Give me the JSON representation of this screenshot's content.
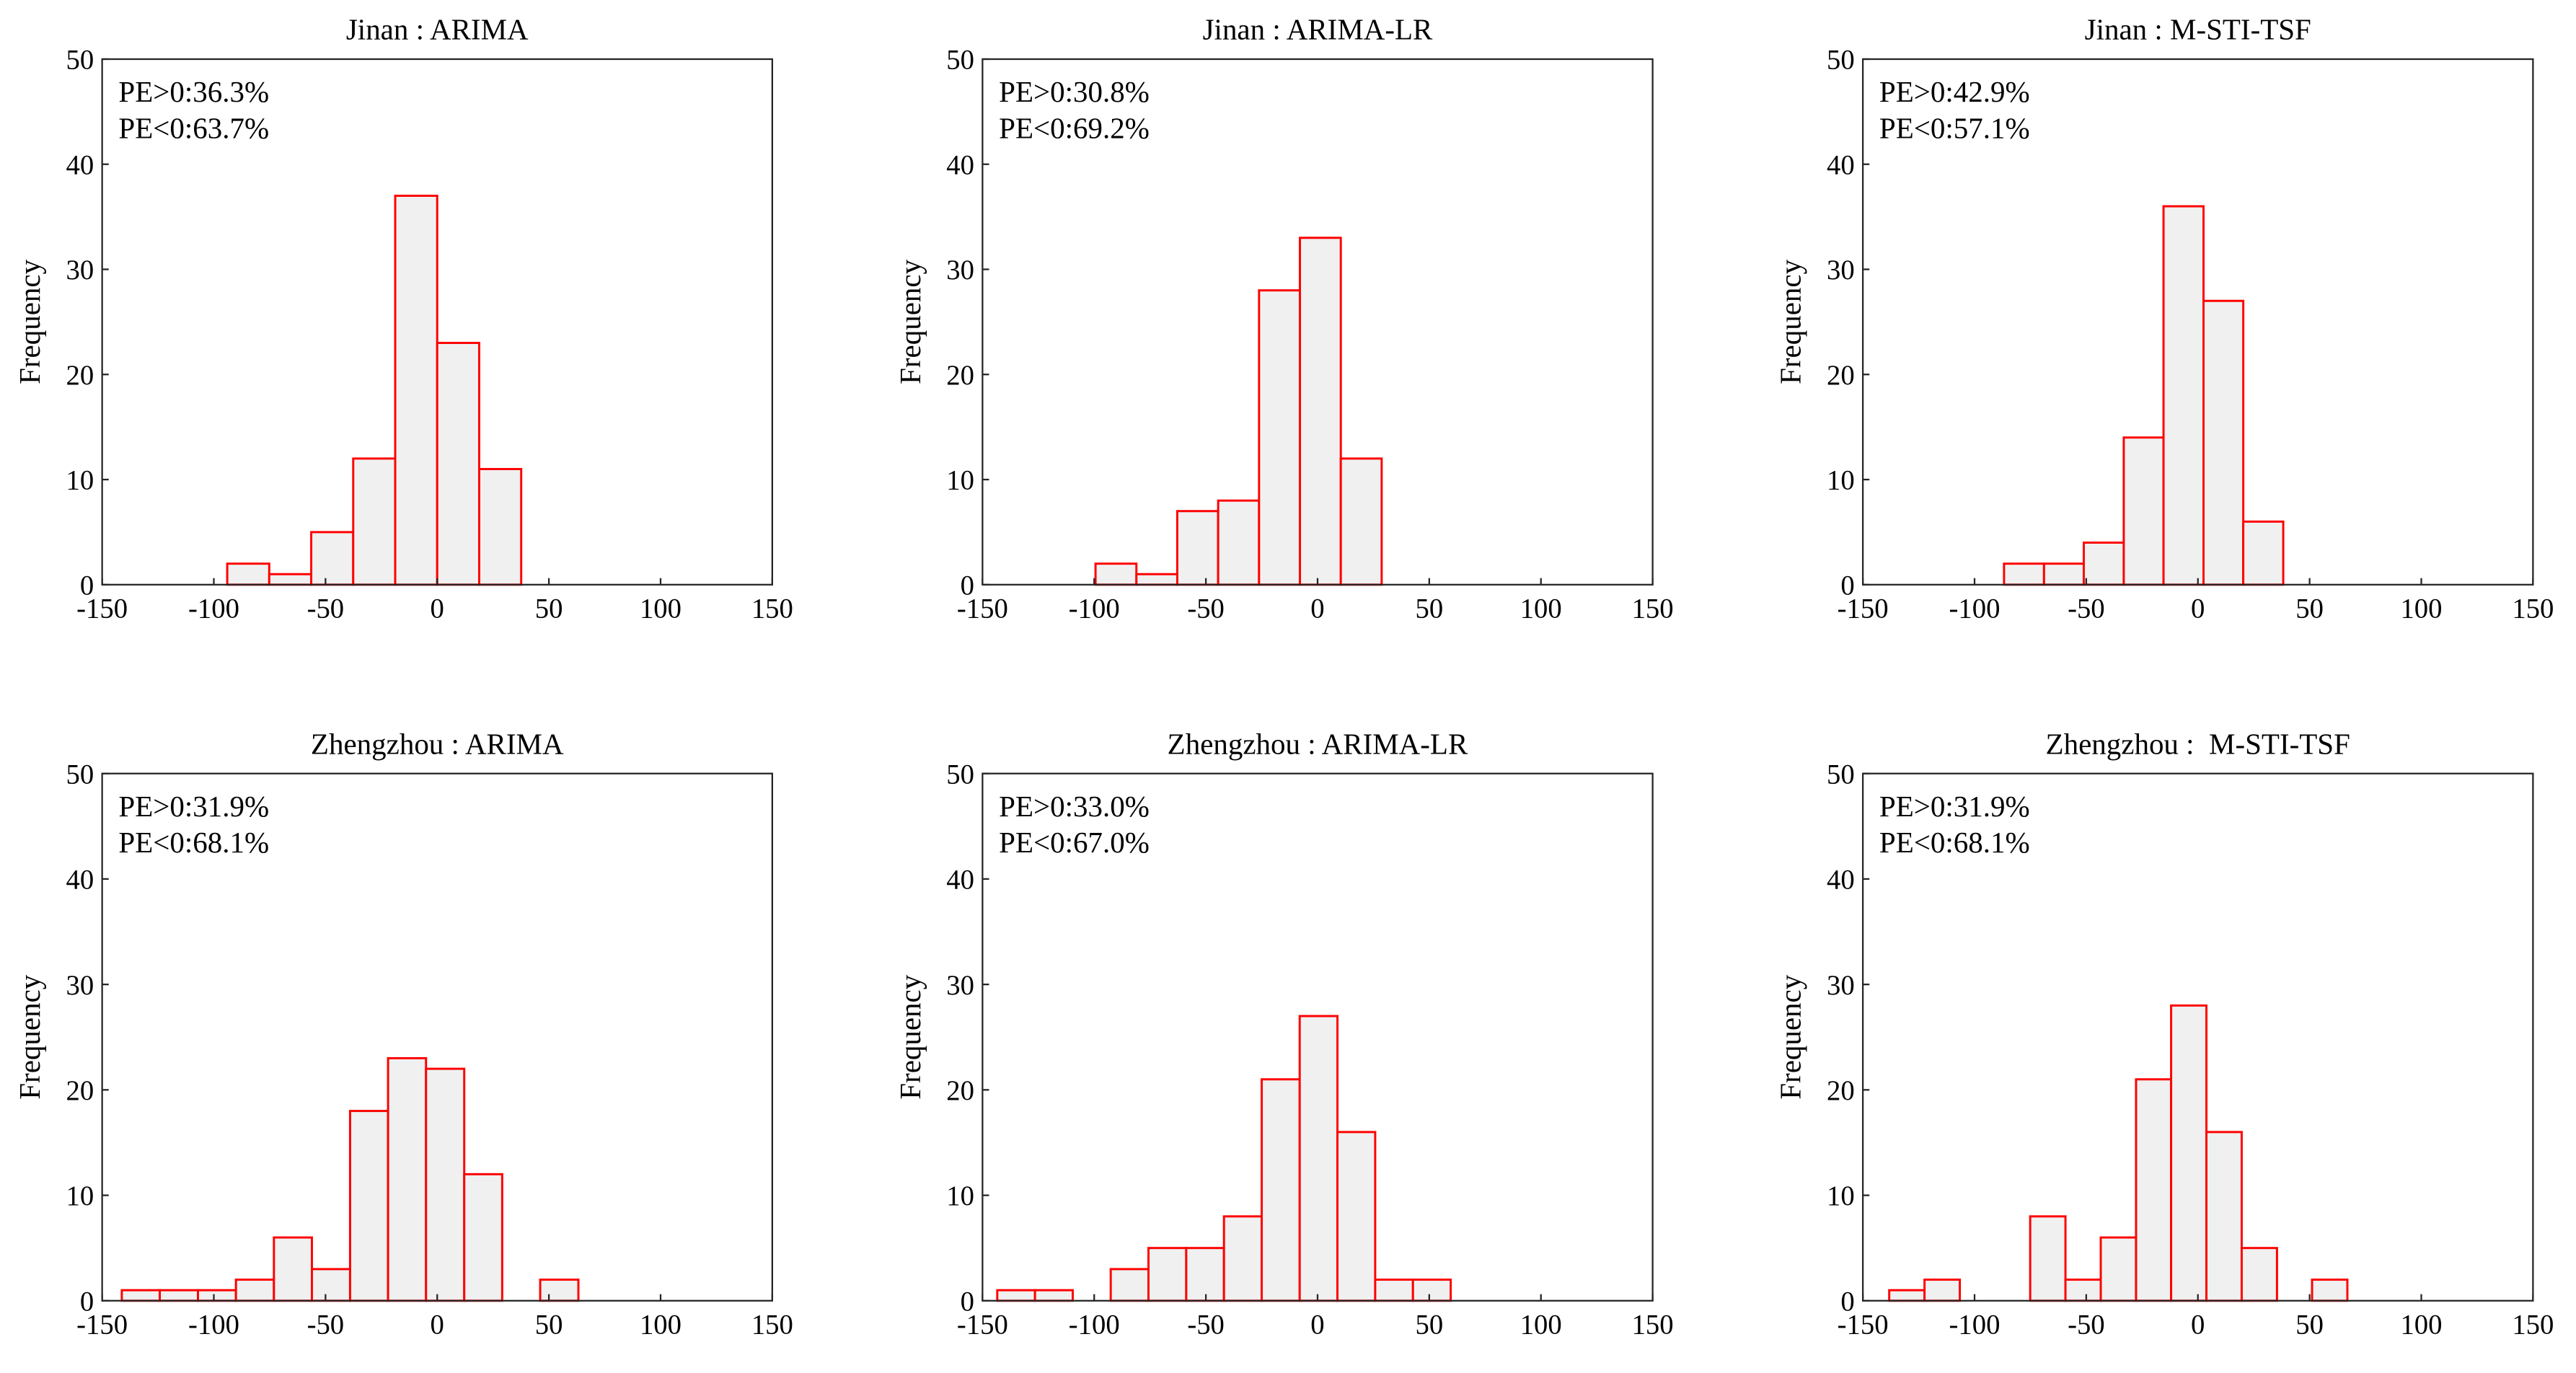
{
  "chart_data": [
    {
      "type": "histogram",
      "title": "Jinan : ARIMA",
      "annotations": [
        "PE>0:36.3%",
        "PE<0:63.7%"
      ],
      "ylabel": "Frequency",
      "bins": [
        -94,
        -75.2,
        -56.4,
        -37.6,
        -18.8,
        0,
        18.8,
        37.6
      ],
      "counts": [
        2,
        1,
        5,
        12,
        37,
        23,
        11
      ],
      "color": "#ff0000",
      "fill": "#f0f0f0",
      "xlim": [
        -150,
        150
      ],
      "xticks": [
        -150,
        -100,
        -50,
        0,
        50,
        100,
        150
      ],
      "ylim": [
        0,
        50
      ],
      "yticks": [
        0,
        10,
        20,
        30,
        40,
        50
      ]
    },
    {
      "type": "histogram",
      "title": "Jinan : ARIMA-LR",
      "annotations": [
        "PE>0:30.8%",
        "PE<0:69.2%"
      ],
      "ylabel": "Frequency",
      "bins": [
        -99.4,
        -81.1,
        -62.8,
        -44.5,
        -26.2,
        -7.9,
        10.4,
        28.7
      ],
      "counts": [
        2,
        1,
        7,
        8,
        28,
        33,
        12
      ],
      "color": "#ff0000",
      "fill": "#f0f0f0",
      "xlim": [
        -150,
        150
      ],
      "xticks": [
        -150,
        -100,
        -50,
        0,
        50,
        100,
        150
      ],
      "ylim": [
        0,
        50
      ],
      "yticks": [
        0,
        10,
        20,
        30,
        40,
        50
      ]
    },
    {
      "type": "histogram",
      "title": "Jinan : M-STI-TSF",
      "annotations": [
        "PE>0:42.9%",
        "PE<0:57.1%"
      ],
      "ylabel": "Frequency",
      "bins": [
        -86.8,
        -68.9,
        -51.1,
        -33.2,
        -15.4,
        2.5,
        20.3,
        38.2
      ],
      "counts": [
        2,
        2,
        4,
        14,
        36,
        27,
        6
      ],
      "color": "#ff0000",
      "fill": "#f0f0f0",
      "xlim": [
        -150,
        150
      ],
      "xticks": [
        -150,
        -100,
        -50,
        0,
        50,
        100,
        150
      ],
      "ylim": [
        0,
        50
      ],
      "yticks": [
        0,
        10,
        20,
        30,
        40,
        50
      ]
    },
    {
      "type": "histogram",
      "title": "Zhengzhou : ARIMA",
      "annotations": [
        "PE>0:31.9%",
        "PE<0:68.1%"
      ],
      "ylabel": "Frequency",
      "bins": [
        -141.2,
        -124.2,
        -107.1,
        -90.1,
        -73.1,
        -56.1,
        -39.0,
        -22.0,
        -5.0,
        12.1,
        29.1,
        46.1,
        63.2
      ],
      "counts": [
        1,
        1,
        1,
        2,
        6,
        3,
        18,
        23,
        22,
        12,
        0,
        2
      ],
      "color": "#ff0000",
      "fill": "#f0f0f0",
      "xlim": [
        -150,
        150
      ],
      "xticks": [
        -150,
        -100,
        -50,
        0,
        50,
        100,
        150
      ],
      "ylim": [
        0,
        50
      ],
      "yticks": [
        0,
        10,
        20,
        30,
        40,
        50
      ]
    },
    {
      "type": "histogram",
      "title": "Zhengzhou : ARIMA-LR",
      "annotations": [
        "PE>0:33.0%",
        "PE<0:67.0%"
      ],
      "ylabel": "Frequency",
      "bins": [
        -143.4,
        -126.5,
        -109.6,
        -92.6,
        -75.7,
        -58.8,
        -41.9,
        -25.0,
        -8.0,
        8.9,
        25.8,
        42.7,
        59.6
      ],
      "counts": [
        1,
        1,
        0,
        3,
        5,
        5,
        8,
        21,
        27,
        16,
        2,
        2
      ],
      "color": "#ff0000",
      "fill": "#f0f0f0",
      "xlim": [
        -150,
        150
      ],
      "xticks": [
        -150,
        -100,
        -50,
        0,
        50,
        100,
        150
      ],
      "ylim": [
        0,
        50
      ],
      "yticks": [
        0,
        10,
        20,
        30,
        40,
        50
      ]
    },
    {
      "type": "histogram",
      "title": "Zhengzhou :  M-STI-TSF",
      "annotations": [
        "PE>0:31.9%",
        "PE<0:68.1%"
      ],
      "ylabel": "Frequency",
      "bins": [
        -138.2,
        -122.4,
        -106.6,
        -90.9,
        -75.1,
        -59.3,
        -43.5,
        -27.7,
        -12.0,
        3.8,
        19.6,
        35.4,
        51.1,
        66.9
      ],
      "counts": [
        1,
        2,
        0,
        0,
        8,
        2,
        6,
        21,
        28,
        16,
        5,
        0,
        2
      ],
      "color": "#ff0000",
      "fill": "#f0f0f0",
      "xlim": [
        -150,
        150
      ],
      "xticks": [
        -150,
        -100,
        -50,
        0,
        50,
        100,
        150
      ],
      "ylim": [
        0,
        50
      ],
      "yticks": [
        0,
        10,
        20,
        30,
        40,
        50
      ]
    }
  ]
}
